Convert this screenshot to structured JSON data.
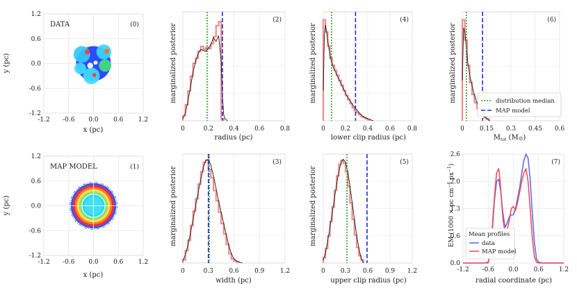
{
  "figure": {
    "labels": {
      "radius": "radius (pc)",
      "lower_clip": "lower clip radius (pc)",
      "mass": "M",
      "mass_sub": "tot",
      "mass_unit": " (M",
      "mass_unit_sym": "⊙",
      "mass_unit_close": ")",
      "width": "width (pc)",
      "upper_clip": "upper clip radius (pc)",
      "radial": "radial coordinate (pc)",
      "x_pc": "x (pc)",
      "y_pc": "y (pc)",
      "marg_post": "marginalized posterior",
      "em_prefix": "EM (1000 × pc cm",
      "em_exp1": "−6",
      "em_mid": " px",
      "em_exp2": "−1",
      "em_close": ")"
    }
  },
  "colors": {
    "hist": "#f28b8b",
    "kde": "#1a1a1a",
    "median": "#2e9a2e",
    "map": "#1f2de0",
    "data_profile": "#5b6ff0",
    "model_profile": "#f24d5a",
    "grid": "#ffffff",
    "panel_bg": "#ffffff"
  },
  "chart_data": [
    {
      "id": 0,
      "type": "heatmap",
      "tag": "(0)",
      "title": "DATA",
      "xlabel": "x (pc)",
      "ylabel": "y (pc)",
      "xlim": [
        -1.2,
        1.2
      ],
      "ylim": [
        -1.2,
        1.2
      ],
      "xticks": [
        "-1.2",
        "-0.6",
        "0.0",
        "0.6",
        "1.2"
      ],
      "yticks": [
        "-1.2",
        "-0.6",
        "0.0",
        "0.6",
        "1.2"
      ],
      "blobs": [
        {
          "x": 0.0,
          "y": 0.0,
          "r": 0.42,
          "c": "#2b4cff"
        },
        {
          "x": -0.28,
          "y": 0.22,
          "r": 0.2,
          "c": "#35c8ff"
        },
        {
          "x": 0.25,
          "y": 0.28,
          "r": 0.18,
          "c": "#38d6ff"
        },
        {
          "x": -0.05,
          "y": -0.3,
          "r": 0.2,
          "c": "#3fdcff"
        },
        {
          "x": 0.28,
          "y": -0.05,
          "r": 0.15,
          "c": "#45e07a"
        },
        {
          "x": -0.32,
          "y": -0.12,
          "r": 0.14,
          "c": "#3fdcff"
        },
        {
          "x": -0.15,
          "y": 0.28,
          "r": 0.06,
          "c": "#ff3b2e"
        },
        {
          "x": 0.32,
          "y": 0.3,
          "r": 0.06,
          "c": "#ff6a2e"
        },
        {
          "x": 0.02,
          "y": -0.28,
          "r": 0.05,
          "c": "#ff3b2e"
        },
        {
          "x": -0.08,
          "y": -0.05,
          "r": 0.07,
          "c": "#ffffff"
        },
        {
          "x": 0.05,
          "y": 0.02,
          "r": 0.05,
          "c": "#ffffff"
        }
      ]
    },
    {
      "id": 1,
      "type": "heatmap",
      "tag": "(1)",
      "title": "MAP MODEL",
      "xlabel": "x (pc)",
      "ylabel": "y (pc)",
      "xlim": [
        -1.2,
        1.2
      ],
      "ylim": [
        -1.2,
        1.2
      ],
      "xticks": [
        "-1.2",
        "-0.6",
        "0.0",
        "0.6",
        "1.2"
      ],
      "yticks": [
        "-1.2",
        "-0.6",
        "0.0",
        "0.6",
        "1.2"
      ],
      "ring_radius": 0.57,
      "clip_inner": 0.28,
      "rings": [
        {
          "r": 0.5,
          "c": "#e8303a"
        },
        {
          "r": 0.45,
          "c": "#ff7a30"
        },
        {
          "r": 0.4,
          "c": "#ffe04a"
        },
        {
          "r": 0.35,
          "c": "#9ae05a"
        },
        {
          "r": 0.3,
          "c": "#33d4e8"
        },
        {
          "r": 0.22,
          "c": "#40e0f0"
        }
      ]
    },
    {
      "id": 2,
      "type": "posterior",
      "tag": "(2)",
      "xlabel": "radius (pc)",
      "ylabel": "marginalized posterior",
      "xlim": [
        0,
        0.8
      ],
      "xticks": [
        0,
        0.2,
        0.4,
        0.6,
        0.8
      ],
      "xtick_labels": [
        "0",
        "0.2",
        "0.4",
        "0.6",
        "0.8"
      ],
      "ymax": 1.1,
      "median": 0.19,
      "map": 0.31,
      "bin_width": 0.02,
      "hist": [
        0.05,
        0.16,
        0.3,
        0.45,
        0.58,
        0.63,
        0.7,
        0.75,
        0.72,
        0.74,
        0.73,
        0.78,
        0.85,
        0.96,
        1.0,
        0.02
      ],
      "kde_x": [
        0.0,
        0.02,
        0.04,
        0.06,
        0.08,
        0.1,
        0.12,
        0.14,
        0.16,
        0.18,
        0.2,
        0.22,
        0.24,
        0.26,
        0.28,
        0.3,
        0.31,
        0.32,
        0.33,
        0.35
      ],
      "kde_y": [
        0.02,
        0.08,
        0.2,
        0.34,
        0.49,
        0.6,
        0.68,
        0.72,
        0.71,
        0.7,
        0.73,
        0.77,
        0.84,
        0.8,
        0.86,
        0.6,
        0.25,
        0.06,
        0.02,
        0.0
      ]
    },
    {
      "id": 3,
      "type": "posterior",
      "tag": "(3)",
      "xlabel": "width (pc)",
      "ylabel": "marginalized posterior",
      "xlim": [
        0,
        1.2
      ],
      "xticks": [
        0,
        0.3,
        0.6,
        0.9,
        1.2
      ],
      "xtick_labels": [
        "0",
        "0.3",
        "0.6",
        "0.9",
        "1.2"
      ],
      "ymax": 1.05,
      "median": 0.31,
      "map": 0.3,
      "bin_width": 0.03,
      "hist": [
        0.03,
        0.12,
        0.22,
        0.36,
        0.5,
        0.62,
        0.76,
        0.88,
        0.97,
        0.99,
        0.9,
        0.82,
        0.7,
        0.6,
        0.49,
        0.38,
        0.28,
        0.18,
        0.09,
        0.04,
        0.02,
        0.01
      ],
      "kde_x": [
        0.0,
        0.03,
        0.06,
        0.09,
        0.12,
        0.15,
        0.18,
        0.21,
        0.24,
        0.27,
        0.3,
        0.33,
        0.36,
        0.39,
        0.42,
        0.45,
        0.48,
        0.51,
        0.54,
        0.57,
        0.6,
        0.63,
        0.66,
        0.7
      ],
      "kde_y": [
        0.02,
        0.08,
        0.17,
        0.29,
        0.42,
        0.55,
        0.68,
        0.8,
        0.92,
        0.99,
        1.0,
        0.94,
        0.84,
        0.72,
        0.6,
        0.49,
        0.38,
        0.27,
        0.17,
        0.09,
        0.04,
        0.02,
        0.01,
        0.0
      ]
    },
    {
      "id": 4,
      "type": "posterior",
      "tag": "(4)",
      "xlabel": "lower clip radius (pc)",
      "ylabel": "marginalized posterior",
      "xlim": [
        0,
        0.8
      ],
      "xticks": [
        0,
        0.2,
        0.4,
        0.6,
        0.8
      ],
      "xtick_labels": [
        "0",
        "0.2",
        "0.4",
        "0.6",
        "0.8"
      ],
      "ymax": 1.08,
      "median": 0.075,
      "map": 0.29,
      "bin_width": 0.02,
      "hist": [
        1.0,
        0.88,
        0.74,
        0.62,
        0.55,
        0.5,
        0.45,
        0.4,
        0.35,
        0.3,
        0.25,
        0.21,
        0.17,
        0.13,
        0.1,
        0.08,
        0.06,
        0.04,
        0.03,
        0.02,
        0.01
      ],
      "kde_x": [
        0.0,
        0.01,
        0.02,
        0.03,
        0.05,
        0.07,
        0.09,
        0.12,
        0.15,
        0.18,
        0.21,
        0.24,
        0.27,
        0.3,
        0.33,
        0.36,
        0.4,
        0.45
      ],
      "kde_y": [
        0.3,
        0.85,
        0.95,
        0.88,
        0.72,
        0.6,
        0.53,
        0.46,
        0.39,
        0.32,
        0.25,
        0.2,
        0.15,
        0.11,
        0.07,
        0.04,
        0.02,
        0.0
      ]
    },
    {
      "id": 5,
      "type": "posterior",
      "tag": "(5)",
      "xlabel": "upper clip radius (pc)",
      "ylabel": "marginalized posterior",
      "xlim": [
        0,
        1.2
      ],
      "xticks": [
        0,
        0.3,
        0.6,
        0.9,
        1.2
      ],
      "xtick_labels": [
        "0",
        "0.3",
        "0.6",
        "0.9",
        "1.2"
      ],
      "ymax": 1.05,
      "median": 0.32,
      "map": 0.59,
      "bin_width": 0.03,
      "hist": [
        0.05,
        0.14,
        0.26,
        0.4,
        0.54,
        0.7,
        0.84,
        0.95,
        0.99,
        0.96,
        0.88,
        0.74,
        0.58,
        0.42,
        0.27,
        0.15,
        0.07,
        0.03
      ],
      "kde_x": [
        0.0,
        0.03,
        0.06,
        0.09,
        0.12,
        0.15,
        0.18,
        0.21,
        0.24,
        0.27,
        0.3,
        0.33,
        0.36,
        0.39,
        0.42,
        0.45,
        0.48,
        0.51,
        0.54
      ],
      "kde_y": [
        0.03,
        0.1,
        0.21,
        0.34,
        0.48,
        0.62,
        0.76,
        0.88,
        0.97,
        1.0,
        0.97,
        0.88,
        0.74,
        0.58,
        0.42,
        0.27,
        0.14,
        0.05,
        0.0
      ]
    },
    {
      "id": 6,
      "type": "posterior",
      "tag": "(6)",
      "xlabel": "M_tot (M_sun)",
      "ylabel": "marginalized posterior",
      "xlim": [
        0,
        0.6
      ],
      "xticks": [
        0,
        0.15,
        0.3,
        0.45,
        0.6
      ],
      "xtick_labels": [
        "0",
        "0.15",
        "0.3",
        "0.45",
        "0.6"
      ],
      "ymax": 1.08,
      "median": 0.025,
      "map": 0.125,
      "bin_width": 0.015,
      "hist": [
        1.0,
        0.8,
        0.55,
        0.38,
        0.26,
        0.18,
        0.12,
        0.08,
        0.05,
        0.03,
        0.02
      ],
      "kde_x": [
        0.0,
        0.008,
        0.016,
        0.025,
        0.035,
        0.05,
        0.07,
        0.09,
        0.11,
        0.13,
        0.15,
        0.17
      ],
      "kde_y": [
        0.4,
        0.92,
        0.88,
        0.72,
        0.56,
        0.42,
        0.28,
        0.18,
        0.1,
        0.05,
        0.02,
        0.0
      ],
      "legend": {
        "median_label": "distribution median",
        "map_label": "MAP model"
      }
    },
    {
      "id": 7,
      "type": "line",
      "tag": "(7)",
      "xlabel": "radial coordinate (pc)",
      "xlim": [
        -1.2,
        1.2
      ],
      "ylim": [
        0,
        2.6
      ],
      "xticks": [
        "-1.2",
        "-0.6",
        "0.0",
        "0.6",
        "1.2"
      ],
      "yticks": [
        "0.0",
        "0.6",
        "1.3",
        "2.0",
        "2.6"
      ],
      "ytick_values": [
        0,
        0.65,
        1.3,
        1.95,
        2.6
      ],
      "legend_title": "Mean profiles",
      "series": [
        {
          "name": "data",
          "x": [
            -1.2,
            -0.7,
            -0.6,
            -0.55,
            -0.5,
            -0.45,
            -0.4,
            -0.35,
            -0.3,
            -0.25,
            -0.2,
            -0.15,
            -0.1,
            -0.05,
            0.0,
            0.05,
            0.1,
            0.15,
            0.2,
            0.25,
            0.3,
            0.35,
            0.4,
            0.45,
            0.5,
            0.55,
            0.6,
            0.7,
            1.2
          ],
          "y": [
            0,
            0,
            0.02,
            0.2,
            0.8,
            1.5,
            1.95,
            2.0,
            1.7,
            1.2,
            0.85,
            0.95,
            1.1,
            1.15,
            1.15,
            1.3,
            1.55,
            1.8,
            2.15,
            2.45,
            2.6,
            2.5,
            2.0,
            1.2,
            0.5,
            0.1,
            0.02,
            0,
            0
          ]
        },
        {
          "name": "MAP model",
          "x": [
            -1.2,
            -0.6,
            -0.55,
            -0.5,
            -0.45,
            -0.4,
            -0.35,
            -0.32,
            -0.3,
            -0.25,
            -0.2,
            -0.15,
            -0.1,
            -0.05,
            0.0,
            0.05,
            0.1,
            0.15,
            0.2,
            0.25,
            0.3,
            0.35,
            0.4,
            0.45,
            0.5,
            0.55,
            0.6,
            1.2
          ],
          "y": [
            0,
            0,
            0.25,
            0.9,
            1.6,
            2.15,
            2.25,
            2.0,
            1.75,
            1.05,
            0.75,
            0.8,
            1.0,
            1.3,
            1.35,
            1.25,
            1.45,
            1.7,
            1.95,
            2.15,
            2.25,
            1.95,
            1.3,
            0.6,
            0.15,
            0.02,
            0,
            0
          ]
        }
      ]
    }
  ]
}
